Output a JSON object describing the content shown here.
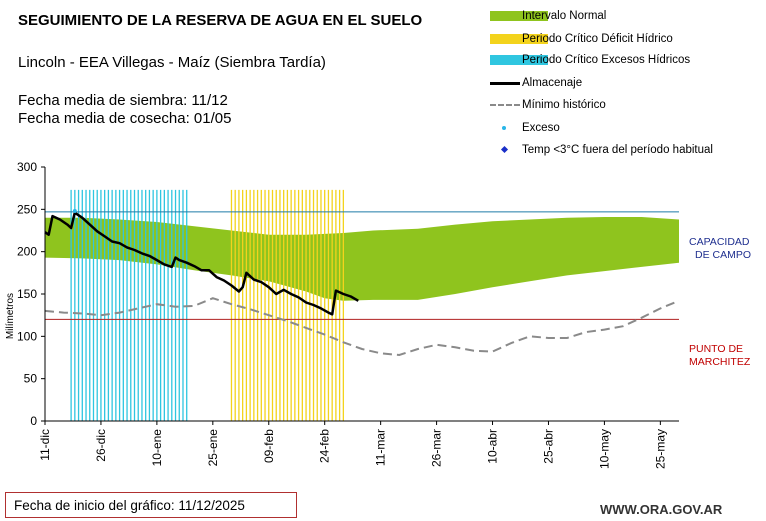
{
  "header": {
    "title": "SEGUIMIENTO DE LA RESERVA DE AGUA EN EL SUELO",
    "subtitle": "Lincoln - EEA Villegas - Maíz (Siembra Tardía)",
    "sowing_date": "Fecha media de siembra: 11/12",
    "harvest_date": "Fecha media de cosecha: 01/05"
  },
  "legend": [
    {
      "label": "Intervalo Normal",
      "color": "#8fc41e",
      "kind": "band"
    },
    {
      "label": "Periodo Crítico Déficit Hídrico",
      "color": "#f3d31c",
      "kind": "band"
    },
    {
      "label": "Periodo Crítico Excesos Hídricos",
      "color": "#2fc6e0",
      "kind": "band"
    },
    {
      "label": "Almacenaje",
      "color": "#000000",
      "kind": "line"
    },
    {
      "label": "Mínimo histórico",
      "color": "#8a8a8a",
      "kind": "dashed"
    },
    {
      "label": "Exceso",
      "color": "#29b6e8",
      "kind": "dot"
    },
    {
      "label": "Temp <3°C fuera del período habitual",
      "color": "#1a2fc8",
      "kind": "diamond"
    }
  ],
  "reference_labels": {
    "capacity_line1": "CAPACIDAD",
    "capacity_line2": "DE CAMPO",
    "wilting_line1": "PUNTO DE",
    "wilting_line2": "MARCHITEZ"
  },
  "footer": {
    "start_date_label": "Fecha de inicio del gráfico:  11/12/2025",
    "website": "WWW.ORA.GOV.AR"
  },
  "chart_data": {
    "type": "line",
    "ylabel": "Milímetros",
    "ylim": [
      0,
      300
    ],
    "yticks": [
      0,
      50,
      100,
      150,
      200,
      250,
      300
    ],
    "x_unit": "days since 11-dic",
    "xlim": [
      0,
      170
    ],
    "xticks": [
      {
        "day": 0,
        "label": "11-dic"
      },
      {
        "day": 15,
        "label": "26-dic"
      },
      {
        "day": 30,
        "label": "10-ene"
      },
      {
        "day": 45,
        "label": "25-ene"
      },
      {
        "day": 60,
        "label": "09-feb"
      },
      {
        "day": 75,
        "label": "24-feb"
      },
      {
        "day": 90,
        "label": "11-mar"
      },
      {
        "day": 105,
        "label": "26-mar"
      },
      {
        "day": 120,
        "label": "10-abr"
      },
      {
        "day": 135,
        "label": "25-abr"
      },
      {
        "day": 150,
        "label": "10-may"
      },
      {
        "day": 165,
        "label": "25-may"
      }
    ],
    "field_capacity": 247,
    "wilting_point": 120,
    "normal_interval": {
      "x": [
        0,
        10,
        20,
        30,
        40,
        50,
        60,
        70,
        75,
        80,
        88,
        100,
        110,
        120,
        130,
        140,
        150,
        160,
        170
      ],
      "upper": [
        240,
        240,
        238,
        235,
        230,
        225,
        220,
        220,
        221,
        222,
        225,
        227,
        232,
        236,
        238,
        240,
        241,
        241,
        238
      ],
      "lower": [
        193,
        192,
        190,
        185,
        178,
        172,
        165,
        153,
        145,
        142,
        143,
        143,
        150,
        158,
        165,
        172,
        177,
        182,
        187
      ]
    },
    "critical_excess_period": [
      7,
      38
    ],
    "critical_deficit_period": [
      50,
      80
    ],
    "storage": {
      "x": [
        0,
        1,
        2,
        4,
        6,
        7,
        8,
        10,
        12,
        14,
        16,
        18,
        20,
        22,
        24,
        26,
        28,
        30,
        32,
        34,
        35,
        36,
        38,
        40,
        42,
        44,
        46,
        48,
        50,
        52,
        53,
        54,
        56,
        58,
        60,
        62,
        64,
        66,
        68,
        70,
        72,
        74,
        76,
        77,
        78,
        80,
        82,
        84
      ],
      "y": [
        223,
        220,
        242,
        238,
        232,
        228,
        246,
        240,
        232,
        224,
        218,
        212,
        210,
        205,
        202,
        198,
        195,
        190,
        185,
        182,
        193,
        190,
        187,
        183,
        178,
        178,
        170,
        166,
        160,
        153,
        158,
        175,
        167,
        164,
        158,
        150,
        155,
        150,
        146,
        140,
        137,
        133,
        128,
        126,
        154,
        150,
        147,
        142
      ]
    },
    "historical_minimum": {
      "x": [
        0,
        5,
        10,
        15,
        20,
        25,
        30,
        35,
        40,
        45,
        50,
        55,
        60,
        65,
        70,
        75,
        80,
        85,
        90,
        95,
        100,
        105,
        110,
        115,
        120,
        125,
        130,
        135,
        140,
        145,
        150,
        155,
        160,
        165,
        170
      ],
      "y": [
        130,
        128,
        127,
        125,
        128,
        133,
        138,
        135,
        136,
        145,
        138,
        132,
        125,
        118,
        110,
        102,
        93,
        85,
        80,
        78,
        85,
        90,
        87,
        83,
        82,
        92,
        100,
        98,
        98,
        105,
        108,
        112,
        122,
        133,
        142
      ]
    },
    "excess_points": [
      {
        "x": 8,
        "y": 248
      }
    ]
  }
}
